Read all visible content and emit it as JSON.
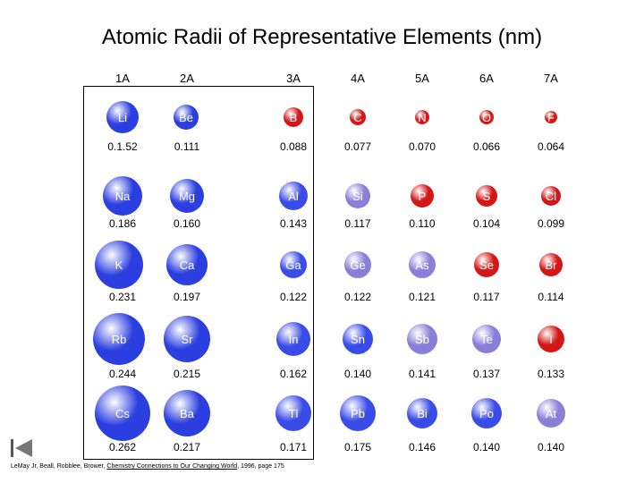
{
  "title": "Atomic Radii of Representative Elements (nm)",
  "groups": [
    "1A",
    "2A",
    "3A",
    "4A",
    "5A",
    "6A",
    "7A"
  ],
  "elements": [
    [
      {
        "symbol": "Li",
        "radius": "0.1.52"
      },
      {
        "symbol": "Be",
        "radius": "0.111"
      },
      {
        "symbol": "B",
        "radius": "0.088"
      },
      {
        "symbol": "C",
        "radius": "0.077"
      },
      {
        "symbol": "N",
        "radius": "0.070"
      },
      {
        "symbol": "O",
        "radius": "0.066"
      },
      {
        "symbol": "F",
        "radius": "0.064"
      }
    ],
    [
      {
        "symbol": "Na",
        "radius": "0.186"
      },
      {
        "symbol": "Mg",
        "radius": "0.160"
      },
      {
        "symbol": "Al",
        "radius": "0.143"
      },
      {
        "symbol": "Si",
        "radius": "0.117"
      },
      {
        "symbol": "P",
        "radius": "0.110"
      },
      {
        "symbol": "S",
        "radius": "0.104"
      },
      {
        "symbol": "Cl",
        "radius": "0.099"
      }
    ],
    [
      {
        "symbol": "K",
        "radius": "0.231"
      },
      {
        "symbol": "Ca",
        "radius": "0.197"
      },
      {
        "symbol": "Ga",
        "radius": "0.122"
      },
      {
        "symbol": "Ge",
        "radius": "0.122"
      },
      {
        "symbol": "As",
        "radius": "0.121"
      },
      {
        "symbol": "Se",
        "radius": "0.117"
      },
      {
        "symbol": "Br",
        "radius": "0.114"
      }
    ],
    [
      {
        "symbol": "Rb",
        "radius": "0.244"
      },
      {
        "symbol": "Sr",
        "radius": "0.215"
      },
      {
        "symbol": "In",
        "radius": "0.162"
      },
      {
        "symbol": "Sn",
        "radius": "0.140"
      },
      {
        "symbol": "Sb",
        "radius": "0.141"
      },
      {
        "symbol": "Te",
        "radius": "0.137"
      },
      {
        "symbol": "I",
        "radius": "0.133"
      }
    ],
    [
      {
        "symbol": "Cs",
        "radius": "0.262"
      },
      {
        "symbol": "Ba",
        "radius": "0.217"
      },
      {
        "symbol": "Tl",
        "radius": "0.171"
      },
      {
        "symbol": "Pb",
        "radius": "0.175"
      },
      {
        "symbol": "Bi",
        "radius": "0.146"
      },
      {
        "symbol": "Po",
        "radius": "0.140"
      },
      {
        "symbol": "At",
        "radius": "0.140"
      }
    ]
  ],
  "colors": {
    "alkali_blue": "#2b3ee0",
    "sp_blue": "#3a4ce8",
    "semi_purple": "#8a7fd8",
    "nonmetal_red": "#d41616"
  },
  "citation": {
    "prefix": "LeMay Jr, Beall, Robblee, Brower,",
    "book": "Chemistry Connections to Our Changing World",
    "suffix": ", 1996, page 175"
  },
  "nav_icon": "first-slide-icon"
}
